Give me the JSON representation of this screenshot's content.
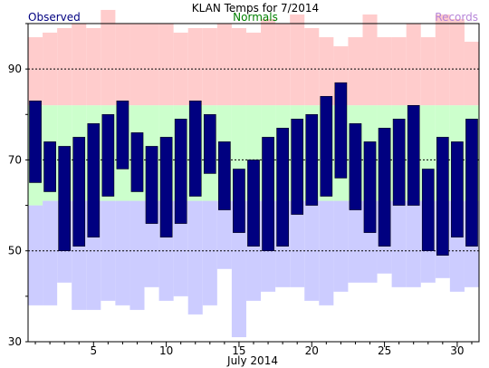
{
  "chart_data": {
    "type": "bar",
    "title": "KLAN Temps for 7/2014",
    "legend": [
      {
        "label": "Observed",
        "color": "#000080"
      },
      {
        "label": "Normals",
        "color": "#008000"
      },
      {
        "label": "Records",
        "color": "#b685d8"
      }
    ],
    "xlabel": "July 2014",
    "x": [
      1,
      2,
      3,
      4,
      5,
      6,
      7,
      8,
      9,
      10,
      11,
      12,
      13,
      14,
      15,
      16,
      17,
      18,
      19,
      20,
      21,
      22,
      23,
      24,
      25,
      26,
      27,
      28,
      29,
      30,
      31
    ],
    "xticks": [
      5,
      10,
      15,
      20,
      25,
      30
    ],
    "xlim": [
      0.5,
      31.5
    ],
    "ylim": [
      30,
      100
    ],
    "yticks": [
      30,
      50,
      70,
      90
    ],
    "gridlines": [
      50,
      70,
      90
    ],
    "series": [
      {
        "name": "Observed",
        "color": "#000080",
        "high": [
          83,
          74,
          73,
          75,
          78,
          80,
          83,
          76,
          73,
          75,
          79,
          83,
          80,
          74,
          68,
          70,
          75,
          77,
          79,
          80,
          84,
          87,
          78,
          74,
          77,
          79,
          82,
          68,
          75,
          74,
          79
        ],
        "low": [
          65,
          63,
          50,
          51,
          53,
          62,
          68,
          63,
          56,
          53,
          56,
          62,
          67,
          59,
          54,
          51,
          50,
          51,
          58,
          60,
          62,
          66,
          59,
          54,
          51,
          60,
          60,
          50,
          49,
          53,
          51
        ]
      },
      {
        "name": "Normals",
        "color": "#ccffcc",
        "high": [
          82,
          82,
          82,
          82,
          82,
          82,
          82,
          82,
          82,
          82,
          82,
          82,
          82,
          82,
          82,
          82,
          82,
          82,
          82,
          82,
          82,
          82,
          82,
          82,
          82,
          82,
          82,
          82,
          82,
          82,
          82
        ],
        "low": [
          60,
          61,
          61,
          61,
          61,
          61,
          61,
          61,
          61,
          61,
          61,
          61,
          61,
          61,
          61,
          61,
          61,
          61,
          61,
          61,
          61,
          61,
          61,
          61,
          61,
          61,
          61,
          61,
          61,
          61,
          61
        ]
      },
      {
        "name": "Records",
        "color": "#ffcccc",
        "high": [
          97,
          98,
          99,
          100,
          99,
          103,
          100,
          100,
          100,
          100,
          98,
          99,
          99,
          100,
          99,
          98,
          101,
          100,
          102,
          99,
          97,
          95,
          97,
          102,
          97,
          97,
          100,
          97,
          102,
          101,
          96
        ],
        "low": [
          38,
          38,
          43,
          37,
          37,
          39,
          38,
          37,
          42,
          39,
          40,
          36,
          38,
          46,
          31,
          39,
          41,
          42,
          42,
          39,
          38,
          41,
          43,
          43,
          45,
          42,
          42,
          43,
          44,
          41,
          42
        ]
      }
    ]
  }
}
